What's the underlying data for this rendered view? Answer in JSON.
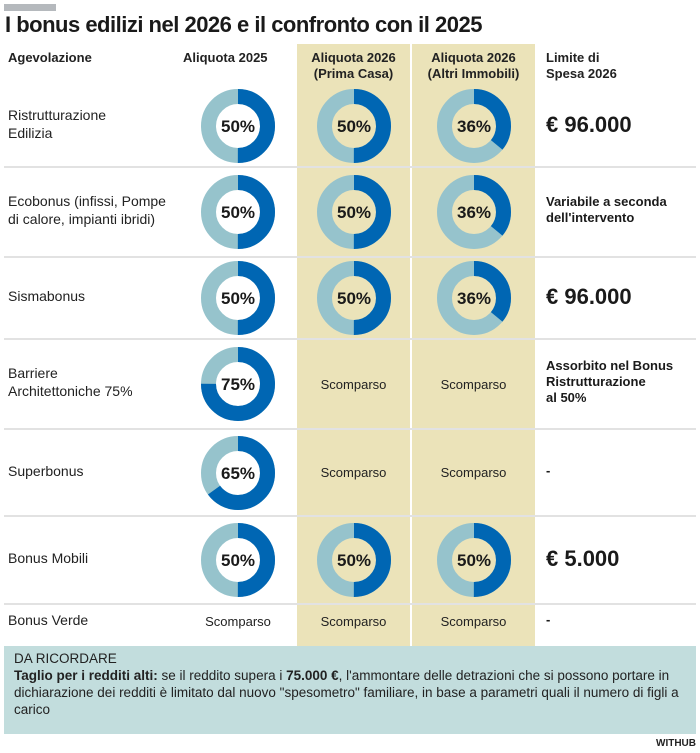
{
  "title": "I bonus edilizi nel 2026 e il confronto con il 2025",
  "colors": {
    "filled": "#0066b3",
    "remaining": "#96c3cc",
    "band": "#ebe3b9",
    "note_bg": "#c2dddd"
  },
  "headers": {
    "agevolazione": "Agevolazione",
    "aliquota_2025": "Aliquota 2025",
    "aliquota_2026_prima_l1": "Aliquota 2026",
    "aliquota_2026_prima_l2": "(Prima Casa)",
    "aliquota_2026_altri_l1": "Aliquota 2026",
    "aliquota_2026_altri_l2": "(Altri Immobili)",
    "limite_l1": "Limite di",
    "limite_l2": "Spesa 2026"
  },
  "chart_data": {
    "type": "table",
    "title": "I bonus edilizi nel 2026 e il confronto con il 2025",
    "columns": [
      "Agevolazione",
      "Aliquota 2025",
      "Aliquota 2026 (Prima Casa)",
      "Aliquota 2026 (Altri Immobili)",
      "Limite di Spesa 2026"
    ],
    "rows": [
      {
        "name_l1": "Ristrutturazione",
        "name_l2": "Edilizia",
        "v2025": 50,
        "v2026_prima": 50,
        "v2026_altri": 36,
        "limit_l1": "€ 96.000",
        "limit_l2": "",
        "limit_l3": "",
        "limit_style": "big"
      },
      {
        "name_l1": "Ecobonus (infissi, Pompe",
        "name_l2": "di calore, impianti ibridi)",
        "v2025": 50,
        "v2026_prima": 50,
        "v2026_altri": 36,
        "limit_l1": "Variabile a seconda",
        "limit_l2": "dell'intervento",
        "limit_l3": "",
        "limit_style": "small"
      },
      {
        "name_l1": "Sismabonus",
        "name_l2": "",
        "v2025": 50,
        "v2026_prima": 50,
        "v2026_altri": 36,
        "limit_l1": "€ 96.000",
        "limit_l2": "",
        "limit_l3": "",
        "limit_style": "big"
      },
      {
        "name_l1": "Barriere",
        "name_l2": "Architettoniche 75%",
        "v2025": 75,
        "v2026_prima": "Scomparso",
        "v2026_altri": "Scomparso",
        "limit_l1": "Assorbito nel Bonus",
        "limit_l2": "Ristrutturazione",
        "limit_l3": "al 50%",
        "limit_style": "small"
      },
      {
        "name_l1": "Superbonus",
        "name_l2": "",
        "v2025": 65,
        "v2026_prima": "Scomparso",
        "v2026_altri": "Scomparso",
        "limit_l1": "-",
        "limit_l2": "",
        "limit_l3": "",
        "limit_style": "small"
      },
      {
        "name_l1": "Bonus Mobili",
        "name_l2": "",
        "v2025": 50,
        "v2026_prima": 50,
        "v2026_altri": 50,
        "limit_l1": "€ 5.000",
        "limit_l2": "",
        "limit_l3": "",
        "limit_style": "big"
      },
      {
        "name_l1": "Bonus Verde",
        "name_l2": "",
        "v2025": "Scomparso",
        "v2026_prima": "Scomparso",
        "v2026_altri": "Scomparso",
        "limit_l1": "-",
        "limit_l2": "",
        "limit_l3": "",
        "limit_style": "small"
      }
    ]
  },
  "note": {
    "heading": "DA RICORDARE",
    "bold_lead": "Taglio per i redditi alti:",
    "text1": " se il reddito supera i ",
    "bold_amount": "75.000 €",
    "text2": ", l'ammontare delle detrazioni che si possono portare in dichiarazione dei redditi è limitato dal nuovo \"spesometro\" familiare, in base a parametri quali il numero di figli a carico"
  },
  "credit": "WITHUB"
}
